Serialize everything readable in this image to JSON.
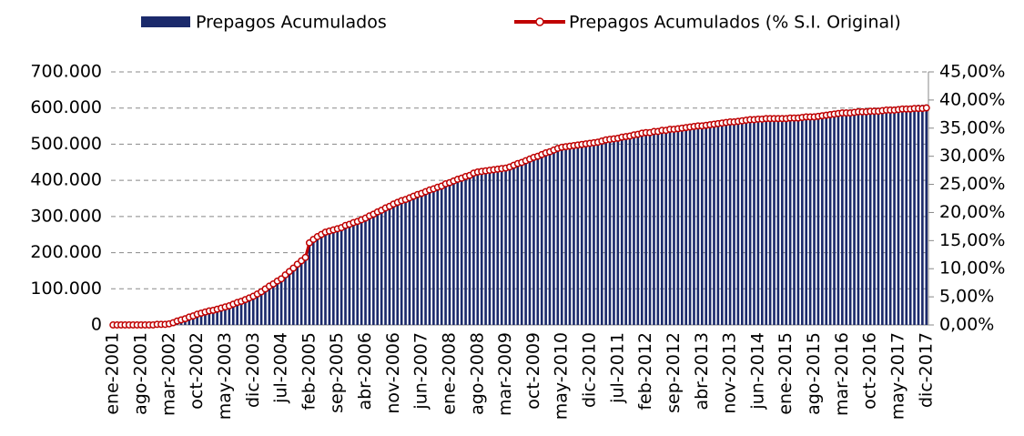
{
  "chart_data": {
    "type": "combo",
    "grid": true,
    "legend": "top",
    "categories": [
      "ene-2001",
      null,
      null,
      null,
      null,
      null,
      null,
      "ago-2001",
      null,
      null,
      null,
      null,
      null,
      null,
      "mar-2002",
      null,
      null,
      null,
      null,
      null,
      null,
      "oct-2002",
      null,
      null,
      null,
      null,
      null,
      null,
      "may-2003",
      null,
      null,
      null,
      null,
      null,
      null,
      "dic-2003",
      null,
      null,
      null,
      null,
      null,
      null,
      "jul-2004",
      null,
      null,
      null,
      null,
      null,
      null,
      "feb-2005",
      null,
      null,
      null,
      null,
      null,
      null,
      "sep-2005",
      null,
      null,
      null,
      null,
      null,
      null,
      "abr-2006",
      null,
      null,
      null,
      null,
      null,
      null,
      "nov-2006",
      null,
      null,
      null,
      null,
      null,
      null,
      "jun-2007",
      null,
      null,
      null,
      null,
      null,
      null,
      "ene-2008",
      null,
      null,
      null,
      null,
      null,
      null,
      "ago-2008",
      null,
      null,
      null,
      null,
      null,
      null,
      "mar-2009",
      null,
      null,
      null,
      null,
      null,
      null,
      "oct-2009",
      null,
      null,
      null,
      null,
      null,
      null,
      "may-2010",
      null,
      null,
      null,
      null,
      null,
      null,
      "dic-2010",
      null,
      null,
      null,
      null,
      null,
      null,
      "jul-2011",
      null,
      null,
      null,
      null,
      null,
      null,
      "feb-2012",
      null,
      null,
      null,
      null,
      null,
      null,
      "sep-2012",
      null,
      null,
      null,
      null,
      null,
      null,
      "abr-2013",
      null,
      null,
      null,
      null,
      null,
      null,
      "nov-2013",
      null,
      null,
      null,
      null,
      null,
      null,
      "jun-2014",
      null,
      null,
      null,
      null,
      null,
      null,
      "ene-2015",
      null,
      null,
      null,
      null,
      null,
      null,
      "ago-2015",
      null,
      null,
      null,
      null,
      null,
      null,
      "mar-2016",
      null,
      null,
      null,
      null,
      null,
      null,
      "oct-2016",
      null,
      null,
      null,
      null,
      null,
      null,
      "may-2017",
      null,
      null,
      null,
      null,
      null,
      null,
      "dic-2017"
    ],
    "series": [
      {
        "name": "Prepagos Acumulados",
        "type": "bar",
        "color": "#1b2a6b",
        "values": [
          0,
          0,
          0,
          0,
          0,
          0,
          0,
          0,
          0,
          0,
          0,
          1000,
          1000,
          2000,
          3000,
          7000,
          11000,
          15000,
          18000,
          22000,
          26000,
          30000,
          33000,
          36000,
          39000,
          41000,
          44000,
          47000,
          50000,
          54000,
          59000,
          63000,
          67000,
          71000,
          76000,
          80000,
          87000,
          94000,
          101000,
          109000,
          116000,
          123000,
          130000,
          140000,
          150000,
          160000,
          170000,
          180000,
          190000,
          230000,
          240000,
          248000,
          255000,
          260000,
          264000,
          267000,
          270000,
          274000,
          279000,
          283000,
          287000,
          291000,
          296000,
          300000,
          306000,
          311000,
          317000,
          323000,
          329000,
          334000,
          340000,
          344000,
          349000,
          353000,
          357000,
          361000,
          366000,
          370000,
          374000,
          379000,
          383000,
          387000,
          391000,
          396000,
          400000,
          404000,
          409000,
          413000,
          417000,
          421000,
          426000,
          430000,
          431000,
          433000,
          434000,
          436000,
          437000,
          439000,
          440000,
          444000,
          449000,
          453000,
          457000,
          461000,
          466000,
          470000,
          474000,
          479000,
          483000,
          487000,
          491000,
          496000,
          500000,
          501000,
          503000,
          504000,
          506000,
          507000,
          509000,
          510000,
          512000,
          514000,
          516000,
          519000,
          521000,
          523000,
          525000,
          527000,
          529000,
          531000,
          534000,
          536000,
          538000,
          540000,
          541000,
          543000,
          544000,
          546000,
          547000,
          549000,
          550000,
          551000,
          553000,
          554000,
          556000,
          557000,
          559000,
          560000,
          561000,
          563000,
          564000,
          566000,
          567000,
          569000,
          570000,
          571000,
          572000,
          573000,
          575000,
          576000,
          577000,
          578000,
          578000,
          579000,
          579000,
          579000,
          580000,
          580000,
          580000,
          581000,
          581000,
          582000,
          583000,
          584000,
          584000,
          585000,
          586000,
          588000,
          589000,
          591000,
          592000,
          594000,
          595000,
          596000,
          596000,
          597000,
          598000,
          599000,
          599000,
          600000,
          601000,
          601000,
          602000,
          603000,
          604000,
          604000,
          605000,
          606000,
          607000,
          607000,
          608000,
          609000,
          609000,
          610000
        ]
      },
      {
        "name": "Prepagos Acumulados (% S.I. Original)",
        "type": "line",
        "axis": "y2",
        "color": "#c00000",
        "values": [
          0,
          0,
          0,
          0,
          0,
          0,
          0,
          0,
          0,
          0,
          0,
          0.1,
          0.1,
          0.1,
          0.2,
          0.4,
          0.7,
          0.9,
          1.1,
          1.4,
          1.6,
          1.9,
          2.1,
          2.3,
          2.5,
          2.6,
          2.8,
          3.0,
          3.2,
          3.4,
          3.7,
          4.0,
          4.2,
          4.5,
          4.8,
          5.1,
          5.5,
          5.9,
          6.4,
          6.9,
          7.3,
          7.8,
          8.2,
          8.9,
          9.5,
          10.1,
          10.8,
          11.4,
          12.0,
          14.6,
          15.2,
          15.7,
          16.1,
          16.5,
          16.7,
          16.9,
          17.1,
          17.3,
          17.7,
          17.9,
          18.2,
          18.4,
          18.7,
          19.0,
          19.4,
          19.7,
          20.1,
          20.4,
          20.8,
          21.1,
          21.5,
          21.8,
          22.1,
          22.3,
          22.6,
          22.9,
          23.2,
          23.4,
          23.7,
          24.0,
          24.2,
          24.5,
          24.7,
          25.1,
          25.3,
          25.6,
          25.9,
          26.1,
          26.4,
          26.6,
          27.0,
          27.2,
          27.3,
          27.4,
          27.5,
          27.6,
          27.7,
          27.8,
          27.9,
          28.1,
          28.4,
          28.7,
          28.9,
          29.2,
          29.5,
          29.8,
          30.0,
          30.3,
          30.6,
          30.8,
          31.1,
          31.4,
          31.6,
          31.7,
          31.8,
          31.9,
          32.0,
          32.1,
          32.2,
          32.3,
          32.4,
          32.5,
          32.7,
          32.9,
          33.0,
          33.1,
          33.2,
          33.4,
          33.5,
          33.6,
          33.8,
          33.9,
          34.1,
          34.2,
          34.2,
          34.4,
          34.4,
          34.6,
          34.6,
          34.8,
          34.8,
          34.9,
          35.0,
          35.1,
          35.2,
          35.3,
          35.4,
          35.4,
          35.5,
          35.6,
          35.7,
          35.8,
          35.9,
          36.0,
          36.1,
          36.1,
          36.2,
          36.3,
          36.4,
          36.5,
          36.5,
          36.6,
          36.6,
          36.7,
          36.7,
          36.7,
          36.7,
          36.7,
          36.7,
          36.8,
          36.8,
          36.8,
          36.9,
          37.0,
          37.0,
          37.0,
          37.1,
          37.2,
          37.3,
          37.4,
          37.5,
          37.6,
          37.7,
          37.7,
          37.7,
          37.8,
          37.9,
          37.9,
          37.9,
          38.0,
          38.0,
          38.0,
          38.1,
          38.2,
          38.2,
          38.2,
          38.3,
          38.4,
          38.4,
          38.4,
          38.5,
          38.5,
          38.5,
          38.6
        ]
      }
    ],
    "ylim": [
      0,
      700000
    ],
    "yticks": [
      0,
      {
        "value": 100000,
        "label": "100.000"
      },
      {
        "value": 200000,
        "label": "200.000"
      },
      {
        "value": 300000,
        "label": "300.000"
      },
      {
        "value": 400000,
        "label": "400.000"
      },
      {
        "value": 500000,
        "label": "500.000"
      },
      {
        "value": 600000,
        "label": "600.000"
      },
      {
        "value": 700000,
        "label": "700.000"
      }
    ],
    "y2lim": [
      0,
      45
    ],
    "y2ticks": [
      {
        "value": 0,
        "label": "0,00%"
      },
      {
        "value": 5,
        "label": "5,00%"
      },
      {
        "value": 10,
        "label": "10,00%"
      },
      {
        "value": 15,
        "label": "15,00%"
      },
      {
        "value": 20,
        "label": "20,00%"
      },
      {
        "value": 25,
        "label": "25,00%"
      },
      {
        "value": 30,
        "label": "30,00%"
      },
      {
        "value": 35,
        "label": "35,00%"
      },
      {
        "value": 40,
        "label": "40,00%"
      },
      {
        "value": 45,
        "label": "45,00%"
      }
    ]
  }
}
